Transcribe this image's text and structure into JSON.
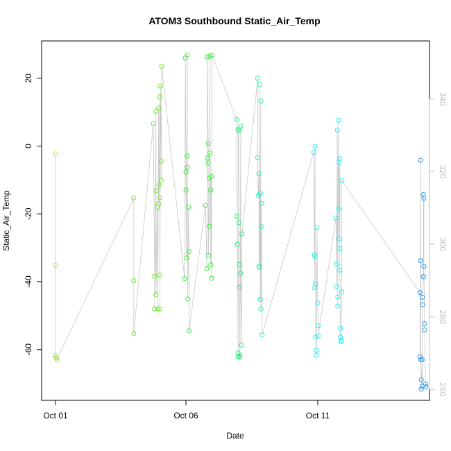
{
  "chart_data": {
    "type": "scatter",
    "title": "ATOM3 Southbound Static_Air_Temp",
    "xlabel": "Date",
    "ylabel": "Static_Air_Temp",
    "x_ticks": [
      "Oct 01",
      "Oct 06",
      "Oct 11"
    ],
    "y_ticks": [
      -60,
      -40,
      -20,
      0,
      20
    ],
    "y2_ticks": [
      260,
      280,
      300,
      320,
      340
    ],
    "xlim_days": [
      0,
      14.6
    ],
    "ylim": [
      -75,
      31
    ],
    "y2lim": [
      257,
      356
    ],
    "colors": {
      "axis": "#000000",
      "right_axis": "#bdbdbd",
      "line": "#c8c8c8"
    },
    "series": [
      {
        "color": "#99ee33",
        "points": [
          [
            0.0,
            -2.3
          ],
          [
            0.0,
            -35.2
          ],
          [
            0.0,
            -61.8
          ],
          [
            0.02,
            -62.5
          ],
          [
            0.05,
            -63.0
          ]
        ]
      },
      {
        "color": "#66ee22",
        "points": [
          [
            3.0,
            -15.3
          ],
          [
            3.0,
            -39.7
          ],
          [
            3.0,
            -55.3
          ],
          [
            3.75,
            6.6
          ],
          [
            3.8,
            -38.4
          ],
          [
            3.8,
            -48.0
          ],
          [
            3.85,
            10.3
          ],
          [
            3.85,
            -13.2
          ],
          [
            3.85,
            -43.8
          ],
          [
            3.9,
            -18.1
          ],
          [
            3.92,
            -48.0
          ],
          [
            3.95,
            11.2
          ],
          [
            3.95,
            -17.0
          ],
          [
            3.97,
            -11.5
          ],
          [
            4.0,
            14.5
          ],
          [
            4.0,
            -15.2
          ],
          [
            4.0,
            -38.0
          ],
          [
            4.0,
            -48.0
          ],
          [
            4.02,
            17.7
          ],
          [
            4.05,
            -4.4
          ],
          [
            4.05,
            -10.1
          ],
          [
            4.07,
            23.5
          ]
        ]
      },
      {
        "color": "#33ee33",
        "points": [
          [
            4.95,
            -39.1
          ],
          [
            4.98,
            26.0
          ],
          [
            5.0,
            -7.7
          ],
          [
            5.0,
            -13.0
          ],
          [
            5.02,
            -33.0
          ],
          [
            5.05,
            26.8
          ],
          [
            5.05,
            -3.0
          ],
          [
            5.05,
            -6.3
          ],
          [
            5.07,
            -45.1
          ],
          [
            5.1,
            -18.0
          ],
          [
            5.12,
            -31.1
          ],
          [
            5.12,
            -54.5
          ],
          [
            5.75,
            -17.5
          ],
          [
            5.8,
            -36.2
          ],
          [
            5.82,
            -3.5
          ],
          [
            5.82,
            26.3
          ],
          [
            5.85,
            0.8
          ],
          [
            5.85,
            -5.0
          ],
          [
            5.87,
            -32.3
          ],
          [
            5.9,
            -9.5
          ],
          [
            5.9,
            -23.7
          ],
          [
            5.92,
            26.5
          ],
          [
            5.92,
            -2.0
          ],
          [
            5.95,
            -13.0
          ],
          [
            5.95,
            -35.0
          ],
          [
            5.97,
            -9.0
          ],
          [
            5.98,
            -39.0
          ],
          [
            6.0,
            26.8
          ]
        ]
      },
      {
        "color": "#22ee77",
        "points": [
          [
            6.95,
            7.8
          ],
          [
            6.95,
            -20.7
          ],
          [
            6.97,
            -29.0
          ],
          [
            7.0,
            -61.0
          ],
          [
            7.0,
            -62.2
          ],
          [
            7.0,
            5.0
          ],
          [
            7.02,
            4.5
          ],
          [
            7.03,
            -22.6
          ],
          [
            7.05,
            -35.0
          ],
          [
            7.05,
            -41.7
          ],
          [
            7.07,
            -61.8
          ],
          [
            7.07,
            -62.3
          ],
          [
            7.1,
            5.9
          ],
          [
            7.1,
            -37.5
          ],
          [
            7.12,
            -58.7
          ],
          [
            7.15,
            -25.9
          ]
        ]
      },
      {
        "color": "#22eebb",
        "points": [
          [
            7.75,
            20.0
          ],
          [
            7.75,
            -3.4
          ],
          [
            7.77,
            -14.6
          ],
          [
            7.8,
            -8.1
          ],
          [
            7.8,
            -35.4
          ],
          [
            7.82,
            18.1
          ],
          [
            7.82,
            -35.8
          ],
          [
            7.85,
            -14.0
          ],
          [
            7.85,
            -45.2
          ],
          [
            7.87,
            13.3
          ],
          [
            7.87,
            -48.0
          ],
          [
            7.9,
            -16.9
          ],
          [
            7.9,
            -23.8
          ],
          [
            7.92,
            -55.7
          ]
        ]
      },
      {
        "color": "#22eeee",
        "points": [
          [
            9.9,
            -1.8
          ],
          [
            9.92,
            -32.1
          ],
          [
            9.92,
            -41.8
          ],
          [
            9.95,
            -0.1
          ],
          [
            9.95,
            -32.6
          ],
          [
            9.97,
            -40.6
          ],
          [
            9.97,
            -56.3
          ],
          [
            10.0,
            -61.7
          ],
          [
            10.0,
            -60.2
          ],
          [
            10.02,
            -24.0
          ],
          [
            10.05,
            -46.3
          ],
          [
            10.07,
            -53.0
          ],
          [
            10.07,
            -56.0
          ],
          [
            10.75,
            -21.2
          ],
          [
            10.77,
            -34.9
          ],
          [
            10.77,
            -41.4
          ],
          [
            10.8,
            4.7
          ],
          [
            10.82,
            -44.5
          ],
          [
            10.82,
            -47.2
          ],
          [
            10.85,
            7.6
          ],
          [
            10.85,
            -18.5
          ],
          [
            10.87,
            -4.8
          ],
          [
            10.87,
            -27.4
          ],
          [
            10.9,
            -3.7
          ],
          [
            10.9,
            -30.2
          ],
          [
            10.9,
            -36.6
          ],
          [
            10.92,
            -53.7
          ],
          [
            10.92,
            -56.3
          ],
          [
            10.95,
            -57.3
          ],
          [
            10.95,
            -57.7
          ],
          [
            10.97,
            -43.0
          ],
          [
            10.97,
            -10.2
          ]
        ]
      },
      {
        "color": "#2299ee",
        "points": [
          [
            14.0,
            -4.2
          ],
          [
            14.0,
            -33.8
          ],
          [
            13.97,
            -43.2
          ],
          [
            13.97,
            -62.2
          ],
          [
            14.0,
            -63.0
          ],
          [
            14.02,
            -68.9
          ],
          [
            14.02,
            -71.7
          ],
          [
            14.05,
            -63.0
          ],
          [
            14.05,
            -70.8
          ],
          [
            14.07,
            -44.6
          ],
          [
            14.07,
            -46.8
          ],
          [
            14.1,
            -38.5
          ],
          [
            14.1,
            -14.3
          ],
          [
            14.12,
            -15.4
          ],
          [
            14.12,
            -35.5
          ],
          [
            14.15,
            -52.4
          ],
          [
            14.15,
            -54.2
          ],
          [
            14.18,
            -70.2
          ],
          [
            14.2,
            -71.0
          ]
        ]
      }
    ]
  }
}
